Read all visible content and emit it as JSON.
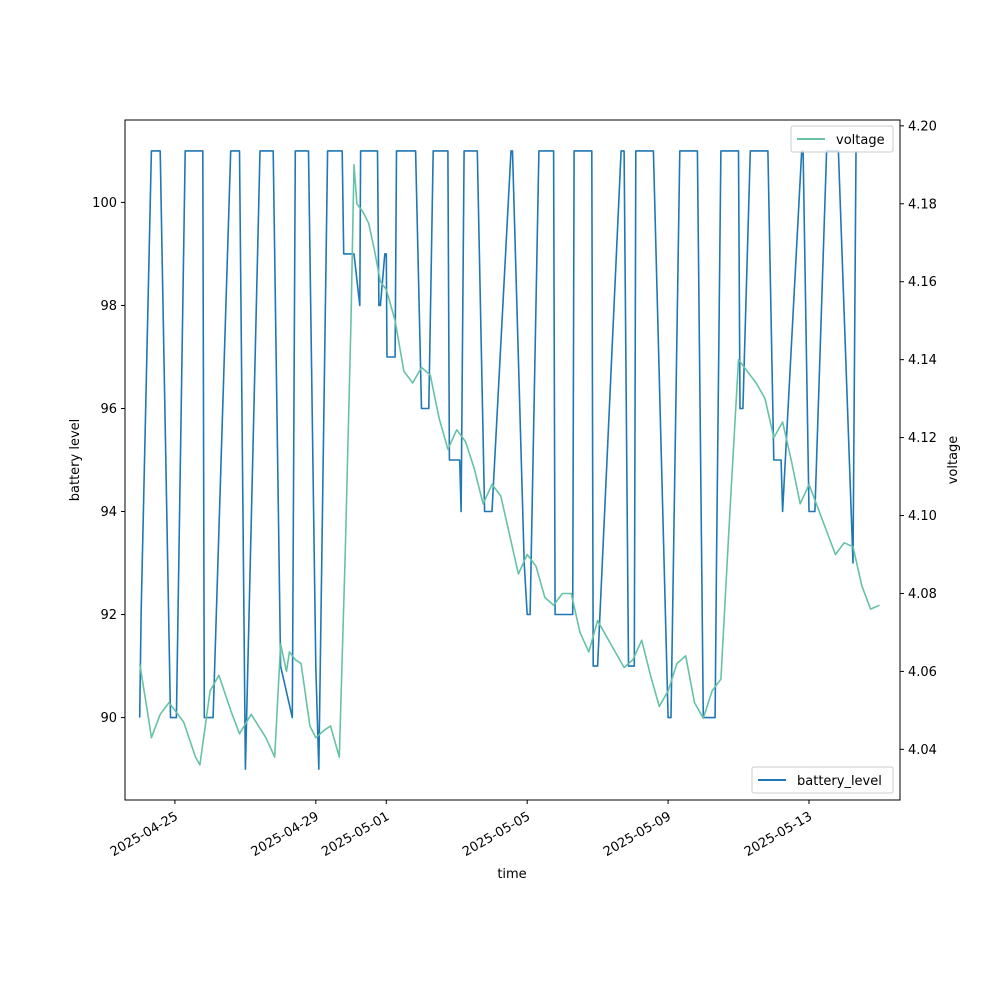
{
  "chart_data": {
    "type": "line",
    "xlabel": "time",
    "ylabel": "battery level",
    "y2label": "voltage",
    "xlim": [
      "2025-04-23T14:00",
      "2025-05-15T14:00"
    ],
    "ylim": [
      88.4,
      101.6
    ],
    "y2lim": [
      4.027,
      4.2015
    ],
    "x_ticks": [
      "2025-04-25",
      "2025-04-29",
      "2025-05-01",
      "2025-05-05",
      "2025-05-09",
      "2025-05-13"
    ],
    "y_ticks": [
      90,
      92,
      94,
      96,
      98,
      100
    ],
    "y2_ticks": [
      4.04,
      4.06,
      4.08,
      4.1,
      4.12,
      4.14,
      4.16,
      4.18,
      4.2
    ],
    "legends": [
      {
        "label": "voltage",
        "placement": "upper right",
        "axis": "right"
      },
      {
        "label": "battery_level",
        "placement": "lower right",
        "axis": "left"
      }
    ],
    "series": [
      {
        "name": "battery_level",
        "axis": "left",
        "color": "#1f77b4",
        "points": [
          [
            "2025-04-24T00:00",
            90
          ],
          [
            "2025-04-24T01:00",
            92
          ],
          [
            "2025-04-24T08:00",
            101
          ],
          [
            "2025-04-24T14:00",
            101
          ],
          [
            "2025-04-24T21:00",
            90
          ],
          [
            "2025-04-25T01:00",
            90
          ],
          [
            "2025-04-25T07:00",
            101
          ],
          [
            "2025-04-25T19:00",
            101
          ],
          [
            "2025-04-25T20:00",
            90
          ],
          [
            "2025-04-26T02:00",
            90
          ],
          [
            "2025-04-26T14:00",
            101
          ],
          [
            "2025-04-26T20:00",
            101
          ],
          [
            "2025-04-27T00:00",
            89
          ],
          [
            "2025-04-27T10:00",
            101
          ],
          [
            "2025-04-27T19:00",
            101
          ],
          [
            "2025-04-28T00:00",
            91
          ],
          [
            "2025-04-28T08:00",
            90
          ],
          [
            "2025-04-28T10:00",
            101
          ],
          [
            "2025-04-28T19:00",
            101
          ],
          [
            "2025-04-29T00:00",
            91
          ],
          [
            "2025-04-29T02:00",
            89
          ],
          [
            "2025-04-29T08:00",
            101
          ],
          [
            "2025-04-29T18:00",
            101
          ],
          [
            "2025-04-29T19:00",
            99
          ],
          [
            "2025-04-30T02:00",
            99
          ],
          [
            "2025-04-30T06:00",
            98
          ],
          [
            "2025-04-30T06:30",
            101
          ],
          [
            "2025-04-30T18:00",
            101
          ],
          [
            "2025-04-30T19:00",
            98
          ],
          [
            "2025-04-30T20:00",
            98
          ],
          [
            "2025-04-30T23:00",
            99
          ],
          [
            "2025-05-01T00:00",
            99
          ],
          [
            "2025-05-01T00:30",
            97
          ],
          [
            "2025-05-01T06:00",
            97
          ],
          [
            "2025-05-01T07:00",
            101
          ],
          [
            "2025-05-01T20:00",
            101
          ],
          [
            "2025-05-02T00:00",
            96
          ],
          [
            "2025-05-02T05:00",
            96
          ],
          [
            "2025-05-02T08:00",
            101
          ],
          [
            "2025-05-02T18:00",
            101
          ],
          [
            "2025-05-02T19:00",
            95
          ],
          [
            "2025-05-03T02:00",
            95
          ],
          [
            "2025-05-03T03:00",
            94
          ],
          [
            "2025-05-03T05:00",
            101
          ],
          [
            "2025-05-03T14:00",
            101
          ],
          [
            "2025-05-03T19:00",
            94
          ],
          [
            "2025-05-04T00:00",
            94
          ],
          [
            "2025-05-04T13:00",
            101
          ],
          [
            "2025-05-04T14:00",
            101
          ],
          [
            "2025-05-04T22:00",
            93
          ],
          [
            "2025-05-05T00:00",
            92
          ],
          [
            "2025-05-05T02:00",
            92
          ],
          [
            "2025-05-05T08:00",
            101
          ],
          [
            "2025-05-05T18:00",
            101
          ],
          [
            "2025-05-05T19:00",
            92
          ],
          [
            "2025-05-06T07:00",
            92
          ],
          [
            "2025-05-06T08:00",
            101
          ],
          [
            "2025-05-06T20:00",
            101
          ],
          [
            "2025-05-06T21:00",
            91
          ],
          [
            "2025-05-07T00:00",
            91
          ],
          [
            "2025-05-07T16:00",
            101
          ],
          [
            "2025-05-07T18:00",
            101
          ],
          [
            "2025-05-07T21:00",
            91
          ],
          [
            "2025-05-08T01:00",
            91
          ],
          [
            "2025-05-08T02:00",
            101
          ],
          [
            "2025-05-08T14:00",
            101
          ],
          [
            "2025-05-09T00:00",
            90
          ],
          [
            "2025-05-09T01:00",
            90
          ],
          [
            "2025-05-09T02:00",
            90
          ],
          [
            "2025-05-09T08:00",
            101
          ],
          [
            "2025-05-09T20:00",
            101
          ],
          [
            "2025-05-10T00:00",
            90
          ],
          [
            "2025-05-10T08:00",
            90
          ],
          [
            "2025-05-10T09:00",
            93
          ],
          [
            "2025-05-10T12:00",
            101
          ],
          [
            "2025-05-11T00:00",
            101
          ],
          [
            "2025-05-11T01:00",
            96
          ],
          [
            "2025-05-11T03:00",
            96
          ],
          [
            "2025-05-11T08:00",
            101
          ],
          [
            "2025-05-11T20:00",
            101
          ],
          [
            "2025-05-12T00:00",
            95
          ],
          [
            "2025-05-12T05:00",
            95
          ],
          [
            "2025-05-12T06:00",
            94
          ],
          [
            "2025-05-12T19:00",
            101
          ],
          [
            "2025-05-12T20:00",
            101
          ],
          [
            "2025-05-13T00:00",
            94
          ],
          [
            "2025-05-13T04:00",
            94
          ],
          [
            "2025-05-13T12:00",
            101
          ],
          [
            "2025-05-13T20:00",
            101
          ],
          [
            "2025-05-14T06:00",
            93
          ],
          [
            "2025-05-14T08:00",
            101
          ]
        ]
      },
      {
        "name": "voltage",
        "axis": "right",
        "color": "#66c2a5",
        "points": [
          [
            "2025-04-24T00:00",
            4.062
          ],
          [
            "2025-04-24T06:00",
            4.048
          ],
          [
            "2025-04-24T08:00",
            4.043
          ],
          [
            "2025-04-24T14:00",
            4.049
          ],
          [
            "2025-04-24T20:00",
            4.052
          ],
          [
            "2025-04-25T00:00",
            4.05
          ],
          [
            "2025-04-25T06:00",
            4.047
          ],
          [
            "2025-04-25T14:00",
            4.038
          ],
          [
            "2025-04-25T17:00",
            4.036
          ],
          [
            "2025-04-26T00:00",
            4.055
          ],
          [
            "2025-04-26T06:00",
            4.059
          ],
          [
            "2025-04-26T14:00",
            4.05
          ],
          [
            "2025-04-26T20:00",
            4.044
          ],
          [
            "2025-04-27T04:00",
            4.049
          ],
          [
            "2025-04-27T14:00",
            4.043
          ],
          [
            "2025-04-27T20:00",
            4.038
          ],
          [
            "2025-04-28T00:00",
            4.067
          ],
          [
            "2025-04-28T04:00",
            4.06
          ],
          [
            "2025-04-28T06:00",
            4.065
          ],
          [
            "2025-04-28T10:00",
            4.063
          ],
          [
            "2025-04-28T14:00",
            4.062
          ],
          [
            "2025-04-28T20:00",
            4.046
          ],
          [
            "2025-04-29T00:00",
            4.043
          ],
          [
            "2025-04-29T06:00",
            4.045
          ],
          [
            "2025-04-29T10:00",
            4.046
          ],
          [
            "2025-04-29T16:00",
            4.038
          ],
          [
            "2025-04-29T20:00",
            4.09
          ],
          [
            "2025-04-30T00:00",
            4.15
          ],
          [
            "2025-04-30T02:00",
            4.19
          ],
          [
            "2025-04-30T04:00",
            4.18
          ],
          [
            "2025-04-30T08:00",
            4.178
          ],
          [
            "2025-04-30T12:00",
            4.175
          ],
          [
            "2025-04-30T16:00",
            4.168
          ],
          [
            "2025-04-30T20:00",
            4.16
          ],
          [
            "2025-05-01T00:00",
            4.158
          ],
          [
            "2025-05-01T06:00",
            4.15
          ],
          [
            "2025-05-01T12:00",
            4.137
          ],
          [
            "2025-05-01T18:00",
            4.134
          ],
          [
            "2025-05-02T00:00",
            4.138
          ],
          [
            "2025-05-02T06:00",
            4.136
          ],
          [
            "2025-05-02T12:00",
            4.125
          ],
          [
            "2025-05-02T18:00",
            4.117
          ],
          [
            "2025-05-03T00:00",
            4.122
          ],
          [
            "2025-05-03T06:00",
            4.119
          ],
          [
            "2025-05-03T12:00",
            4.112
          ],
          [
            "2025-05-03T18:00",
            4.103
          ],
          [
            "2025-05-04T00:00",
            4.108
          ],
          [
            "2025-05-04T06:00",
            4.105
          ],
          [
            "2025-05-04T12:00",
            4.095
          ],
          [
            "2025-05-04T18:00",
            4.085
          ],
          [
            "2025-05-05T00:00",
            4.09
          ],
          [
            "2025-05-05T06:00",
            4.087
          ],
          [
            "2025-05-05T12:00",
            4.079
          ],
          [
            "2025-05-05T18:00",
            4.077
          ],
          [
            "2025-05-06T00:00",
            4.08
          ],
          [
            "2025-05-06T06:00",
            4.08
          ],
          [
            "2025-05-06T12:00",
            4.07
          ],
          [
            "2025-05-06T18:00",
            4.065
          ],
          [
            "2025-05-07T00:00",
            4.073
          ],
          [
            "2025-05-07T06:00",
            4.069
          ],
          [
            "2025-05-07T12:00",
            4.065
          ],
          [
            "2025-05-07T18:00",
            4.061
          ],
          [
            "2025-05-08T00:00",
            4.063
          ],
          [
            "2025-05-08T06:00",
            4.068
          ],
          [
            "2025-05-08T12:00",
            4.059
          ],
          [
            "2025-05-08T18:00",
            4.051
          ],
          [
            "2025-05-09T00:00",
            4.055
          ],
          [
            "2025-05-09T06:00",
            4.062
          ],
          [
            "2025-05-09T12:00",
            4.064
          ],
          [
            "2025-05-09T18:00",
            4.052
          ],
          [
            "2025-05-10T00:00",
            4.048
          ],
          [
            "2025-05-10T06:00",
            4.055
          ],
          [
            "2025-05-10T12:00",
            4.058
          ],
          [
            "2025-05-10T18:00",
            4.1
          ],
          [
            "2025-05-11T00:00",
            4.14
          ],
          [
            "2025-05-11T06:00",
            4.137
          ],
          [
            "2025-05-11T12:00",
            4.134
          ],
          [
            "2025-05-11T18:00",
            4.13
          ],
          [
            "2025-05-12T00:00",
            4.12
          ],
          [
            "2025-05-12T06:00",
            4.124
          ],
          [
            "2025-05-12T12:00",
            4.114
          ],
          [
            "2025-05-12T18:00",
            4.103
          ],
          [
            "2025-05-13T00:00",
            4.108
          ],
          [
            "2025-05-13T06:00",
            4.102
          ],
          [
            "2025-05-13T12:00",
            4.096
          ],
          [
            "2025-05-13T18:00",
            4.09
          ],
          [
            "2025-05-14T00:00",
            4.093
          ],
          [
            "2025-05-14T06:00",
            4.092
          ],
          [
            "2025-05-14T12:00",
            4.082
          ],
          [
            "2025-05-14T18:00",
            4.076
          ],
          [
            "2025-05-15T00:00",
            4.077
          ]
        ]
      }
    ]
  }
}
